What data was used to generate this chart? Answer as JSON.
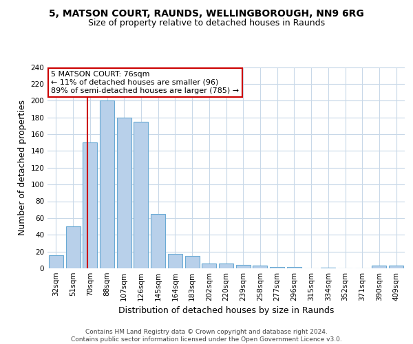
{
  "title1": "5, MATSON COURT, RAUNDS, WELLINGBOROUGH, NN9 6RG",
  "title2": "Size of property relative to detached houses in Raunds",
  "xlabel": "Distribution of detached houses by size in Raunds",
  "ylabel": "Number of detached properties",
  "categories": [
    "32sqm",
    "51sqm",
    "70sqm",
    "88sqm",
    "107sqm",
    "126sqm",
    "145sqm",
    "164sqm",
    "183sqm",
    "202sqm",
    "220sqm",
    "239sqm",
    "258sqm",
    "277sqm",
    "296sqm",
    "315sqm",
    "334sqm",
    "352sqm",
    "371sqm",
    "390sqm",
    "409sqm"
  ],
  "values": [
    16,
    50,
    150,
    200,
    180,
    175,
    65,
    17,
    15,
    6,
    6,
    4,
    3,
    2,
    2,
    0,
    1,
    0,
    0,
    3,
    3
  ],
  "bar_color": "#b8d0ea",
  "bar_edge_color": "#6aaad4",
  "property_line_color": "#cc0000",
  "annotation_text": "5 MATSON COURT: 76sqm\n← 11% of detached houses are smaller (96)\n89% of semi-detached houses are larger (785) →",
  "annotation_box_color": "#ffffff",
  "annotation_box_edge": "#cc0000",
  "ylim": [
    0,
    240
  ],
  "yticks": [
    0,
    20,
    40,
    60,
    80,
    100,
    120,
    140,
    160,
    180,
    200,
    220,
    240
  ],
  "footer": "Contains HM Land Registry data © Crown copyright and database right 2024.\nContains public sector information licensed under the Open Government Licence v3.0.",
  "bg_color": "#ffffff",
  "grid_color": "#c8d8e8",
  "title1_fontsize": 10,
  "title2_fontsize": 9,
  "xlabel_fontsize": 9,
  "ylabel_fontsize": 9,
  "tick_fontsize": 7.5,
  "footer_fontsize": 6.5
}
